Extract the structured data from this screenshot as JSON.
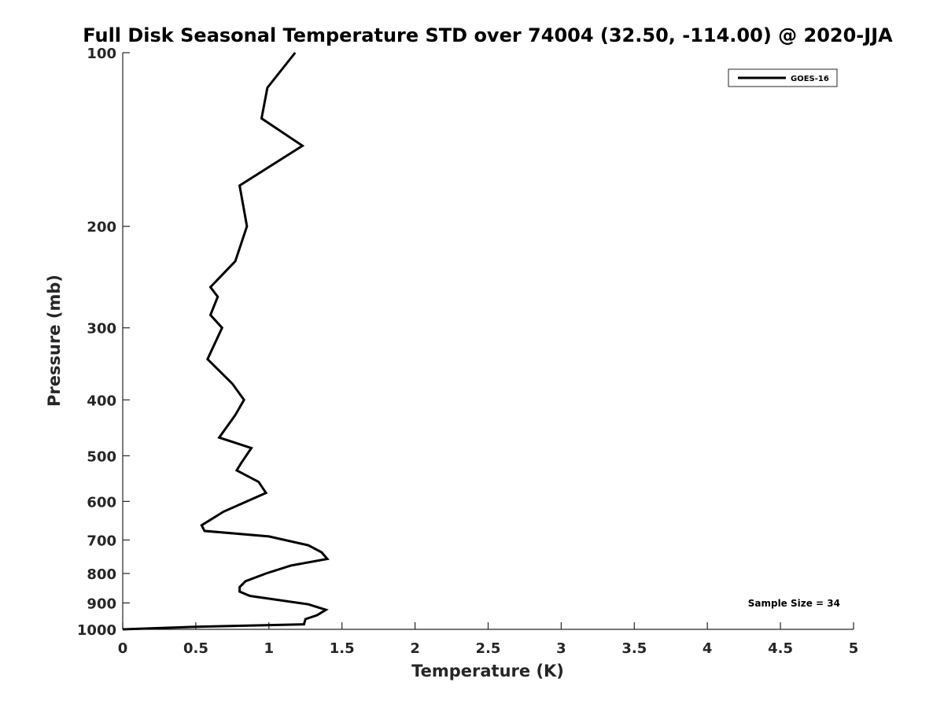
{
  "chart_data": {
    "type": "line",
    "title": "Full Disk Seasonal Temperature STD over 74004 (32.50, -114.00) @ 2020-JJA",
    "xlabel": "Temperature (K)",
    "ylabel": "Pressure (mb)",
    "xlim": [
      0,
      5
    ],
    "ylim": [
      100,
      1000
    ],
    "y_scale": "log",
    "y_reversed": true,
    "x_ticks": [
      "0",
      "0.5",
      "1",
      "1.5",
      "2",
      "2.5",
      "3",
      "3.5",
      "4",
      "4.5",
      "5"
    ],
    "y_ticks": [
      "100",
      "200",
      "300",
      "400",
      "500",
      "600",
      "700",
      "800",
      "900",
      "1000"
    ],
    "grid": false,
    "legend_position": "top-right",
    "annotation": "Sample Size = 34",
    "series": [
      {
        "name": "GOES-16",
        "color": "#000000",
        "x": [
          1.18,
          0.99,
          0.95,
          1.23,
          0.8,
          0.85,
          0.77,
          0.6,
          0.65,
          0.6,
          0.68,
          0.58,
          0.75,
          0.83,
          0.77,
          0.7,
          0.66,
          0.88,
          0.81,
          0.78,
          0.93,
          0.98,
          0.69,
          0.54,
          0.56,
          1.0,
          1.27,
          1.36,
          1.4,
          1.15,
          0.98,
          0.84,
          0.8,
          0.8,
          0.87,
          1.27,
          1.39,
          1.33,
          1.25,
          1.24,
          0.5,
          0.0
        ],
        "y": [
          100,
          115,
          130,
          145,
          170,
          200,
          230,
          255,
          265,
          285,
          300,
          340,
          375,
          400,
          425,
          450,
          465,
          485,
          515,
          530,
          555,
          580,
          625,
          660,
          675,
          690,
          715,
          735,
          755,
          775,
          800,
          825,
          845,
          860,
          875,
          905,
          925,
          945,
          960,
          980,
          990,
          1000
        ]
      }
    ]
  }
}
